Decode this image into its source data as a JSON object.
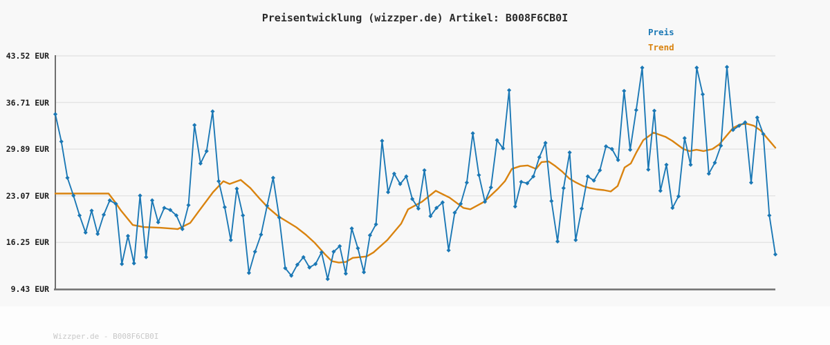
{
  "footer": {
    "watermark": "Wizzper.de - B008F6CB0I"
  },
  "chart_data": {
    "type": "line",
    "title": "Preisentwicklung (wizzper.de) Artikel: B008F6CB0I",
    "xlabel": "",
    "ylabel": "",
    "grid": true,
    "legend_position": "top-right",
    "x_axis": {
      "tick_labels_visible": false
    },
    "y_axis": {
      "unit": "EUR",
      "tick_labels": [
        "43.52 EUR",
        "36.71 EUR",
        "29.89 EUR",
        "23.07 EUR",
        "16.25 EUR",
        "9.43 EUR"
      ],
      "tick_values": [
        43.52,
        36.71,
        29.89,
        23.07,
        16.25,
        9.43
      ]
    },
    "ylim": [
      9.43,
      43.52
    ],
    "colors": {
      "preis": "#1b78b5",
      "trend": "#d9830f",
      "axis": "#6f6f6f",
      "gridline": "#e4e4e4",
      "background": "#f8f8f8"
    },
    "series": [
      {
        "name": "Preis",
        "type": "line+markers",
        "marker": "diamond",
        "color": "#1b78b5",
        "values": [
          35.0,
          31.0,
          25.7,
          23.1,
          20.2,
          17.7,
          20.9,
          17.5,
          20.3,
          22.4,
          21.9,
          13.1,
          17.2,
          13.2,
          23.1,
          14.1,
          22.4,
          19.2,
          21.3,
          21.0,
          20.2,
          18.2,
          21.7,
          33.4,
          27.8,
          29.6,
          35.4,
          25.2,
          21.4,
          16.6,
          24.1,
          20.2,
          11.8,
          14.9,
          17.4,
          21.6,
          25.7,
          19.9,
          12.5,
          11.4,
          13.0,
          14.1,
          12.6,
          13.1,
          14.8,
          10.9,
          14.9,
          15.7,
          11.7,
          18.3,
          15.4,
          11.9,
          17.3,
          18.9,
          31.1,
          23.6,
          26.3,
          24.8,
          25.9,
          22.6,
          21.2,
          26.8,
          20.1,
          21.3,
          22.1,
          15.1,
          20.6,
          21.9,
          25.0,
          32.2,
          26.1,
          22.2,
          24.3,
          31.2,
          30.0,
          38.5,
          21.5,
          25.1,
          24.9,
          25.9,
          28.7,
          30.8,
          22.3,
          16.4,
          24.2,
          29.4,
          16.6,
          21.2,
          25.9,
          25.3,
          26.8,
          30.3,
          29.9,
          28.3,
          38.4,
          29.8,
          35.6,
          41.8,
          26.9,
          35.5,
          23.8,
          27.6,
          21.3,
          23.0,
          31.5,
          27.6,
          41.8,
          37.9,
          26.3,
          27.9,
          30.4,
          41.9,
          32.7,
          33.3,
          33.8,
          25.0,
          34.5,
          32.1,
          20.2,
          14.5
        ]
      },
      {
        "name": "Trend",
        "type": "line",
        "color": "#d9830f",
        "points": [
          [
            80,
            23.4
          ],
          [
            157,
            23.4
          ],
          [
            166,
            22.2
          ],
          [
            175,
            20.9
          ],
          [
            192,
            18.8
          ],
          [
            208,
            18.5
          ],
          [
            232,
            18.4
          ],
          [
            257,
            18.2
          ],
          [
            275,
            19.1
          ],
          [
            288,
            20.9
          ],
          [
            308,
            23.6
          ],
          [
            323,
            25.2
          ],
          [
            332,
            24.8
          ],
          [
            348,
            25.4
          ],
          [
            362,
            24.2
          ],
          [
            375,
            22.7
          ],
          [
            388,
            21.3
          ],
          [
            402,
            20.1
          ],
          [
            415,
            19.3
          ],
          [
            428,
            18.5
          ],
          [
            442,
            17.4
          ],
          [
            455,
            16.2
          ],
          [
            470,
            14.5
          ],
          [
            480,
            13.5
          ],
          [
            490,
            13.3
          ],
          [
            500,
            13.4
          ],
          [
            510,
            14.0
          ],
          [
            530,
            14.2
          ],
          [
            540,
            14.8
          ],
          [
            560,
            16.6
          ],
          [
            580,
            19.0
          ],
          [
            590,
            21.1
          ],
          [
            610,
            22.2
          ],
          [
            630,
            23.8
          ],
          [
            650,
            22.8
          ],
          [
            670,
            21.3
          ],
          [
            680,
            21.1
          ],
          [
            700,
            22.2
          ],
          [
            720,
            24.1
          ],
          [
            730,
            25.2
          ],
          [
            740,
            27.0
          ],
          [
            752,
            27.4
          ],
          [
            763,
            27.5
          ],
          [
            775,
            27.0
          ],
          [
            783,
            28.0
          ],
          [
            793,
            28.1
          ],
          [
            803,
            27.4
          ],
          [
            813,
            26.6
          ],
          [
            823,
            25.6
          ],
          [
            833,
            25.0
          ],
          [
            843,
            24.5
          ],
          [
            853,
            24.2
          ],
          [
            863,
            24.0
          ],
          [
            873,
            23.9
          ],
          [
            883,
            23.7
          ],
          [
            893,
            24.5
          ],
          [
            903,
            27.2
          ],
          [
            912,
            27.8
          ],
          [
            920,
            29.4
          ],
          [
            930,
            31.2
          ],
          [
            945,
            32.3
          ],
          [
            962,
            31.7
          ],
          [
            972,
            31.1
          ],
          [
            988,
            29.9
          ],
          [
            997,
            29.6
          ],
          [
            1007,
            29.8
          ],
          [
            1017,
            29.6
          ],
          [
            1030,
            29.9
          ],
          [
            1040,
            30.6
          ],
          [
            1050,
            31.8
          ],
          [
            1060,
            33.0
          ],
          [
            1070,
            33.5
          ],
          [
            1080,
            33.6
          ],
          [
            1090,
            33.3
          ],
          [
            1100,
            32.6
          ],
          [
            1110,
            31.4
          ],
          [
            1121,
            30.1
          ]
        ]
      }
    ]
  }
}
